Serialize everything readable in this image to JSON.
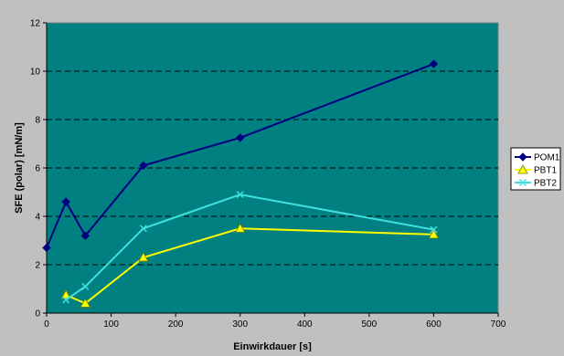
{
  "chart_data": {
    "type": "line",
    "title": "",
    "xlabel": "Einwirkdauer [s]",
    "ylabel": "SFE (polar) [mN/m]",
    "xlim": [
      0,
      700
    ],
    "ylim": [
      0,
      12
    ],
    "x_ticks": [
      0,
      100,
      200,
      300,
      400,
      500,
      600,
      700
    ],
    "y_ticks": [
      0,
      2,
      4,
      6,
      8,
      10,
      12
    ],
    "x_tick_labels": [
      "0",
      "100",
      "200",
      "300",
      "400",
      "500",
      "600",
      "700"
    ],
    "y_tick_labels": [
      "0",
      "2",
      "4",
      "6",
      "8",
      "10",
      "12"
    ],
    "grid": "horizontal dashed",
    "legend_position": "right",
    "plot_background": "#008080",
    "series": [
      {
        "name": "POM1",
        "color": "#000080",
        "marker": "diamond",
        "x": [
          0,
          30,
          60,
          150,
          300,
          600
        ],
        "y": [
          2.7,
          4.6,
          3.2,
          6.1,
          7.25,
          10.3
        ]
      },
      {
        "name": "PBT1",
        "color": "#ffff00",
        "marker": "triangle",
        "x": [
          30,
          60,
          150,
          300,
          600
        ],
        "y": [
          0.75,
          0.4,
          2.3,
          3.5,
          3.25
        ]
      },
      {
        "name": "PBT2",
        "color": "#40e0e0",
        "marker": "x",
        "x": [
          30,
          60,
          150,
          300,
          600
        ],
        "y": [
          0.55,
          1.1,
          3.5,
          4.9,
          3.45
        ]
      }
    ]
  }
}
